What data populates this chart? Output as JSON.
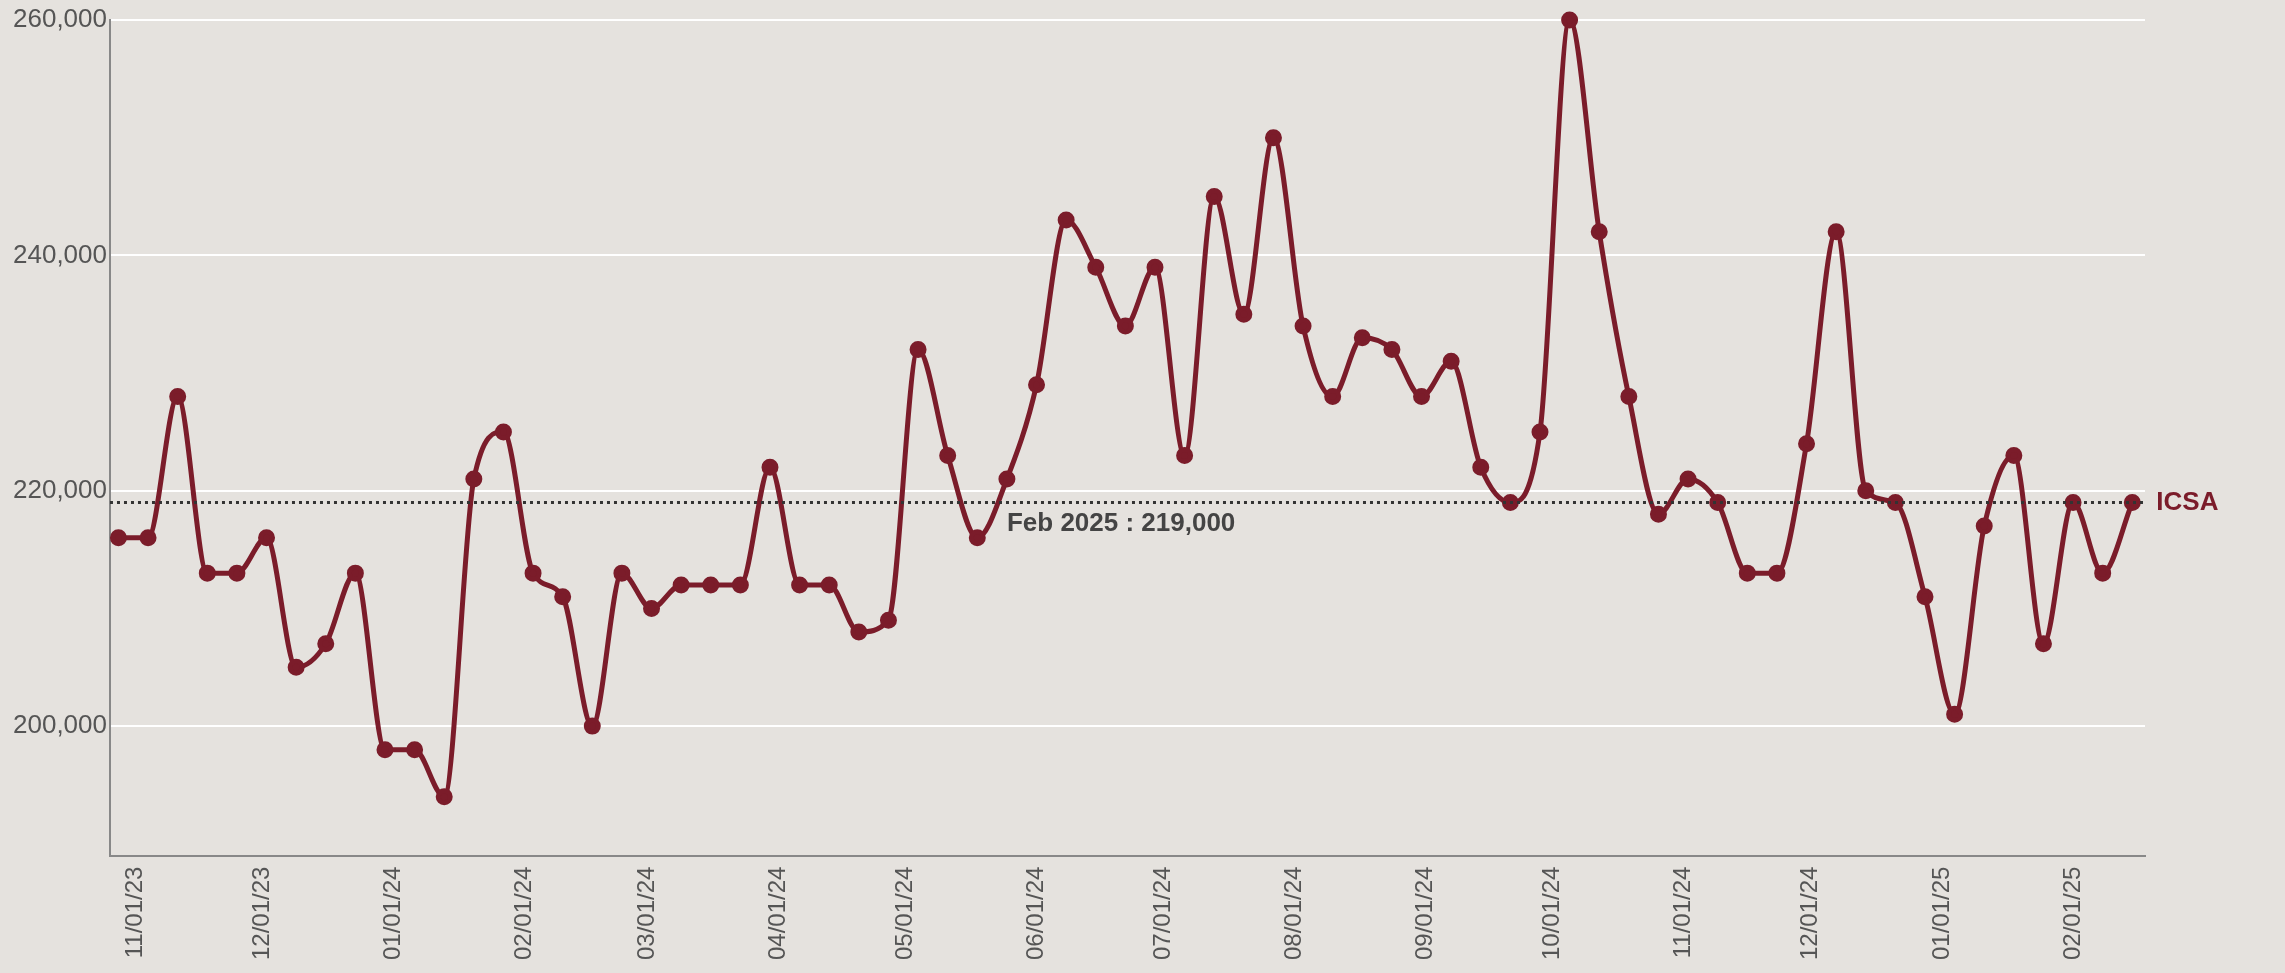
{
  "chart_data": {
    "type": "line",
    "x": [
      "2023-10-28",
      "2023-11-04",
      "2023-11-11",
      "2023-11-18",
      "2023-11-25",
      "2023-12-02",
      "2023-12-09",
      "2023-12-16",
      "2023-12-23",
      "2023-12-30",
      "2024-01-06",
      "2024-01-13",
      "2024-01-20",
      "2024-01-27",
      "2024-02-03",
      "2024-02-10",
      "2024-02-17",
      "2024-02-24",
      "2024-03-02",
      "2024-03-09",
      "2024-03-16",
      "2024-03-23",
      "2024-03-30",
      "2024-04-06",
      "2024-04-13",
      "2024-04-20",
      "2024-04-27",
      "2024-05-04",
      "2024-05-11",
      "2024-05-18",
      "2024-05-25",
      "2024-06-01",
      "2024-06-08",
      "2024-06-15",
      "2024-06-22",
      "2024-06-29",
      "2024-07-06",
      "2024-07-13",
      "2024-07-20",
      "2024-07-27",
      "2024-08-03",
      "2024-08-10",
      "2024-08-17",
      "2024-08-24",
      "2024-08-31",
      "2024-09-07",
      "2024-09-14",
      "2024-09-21",
      "2024-09-28",
      "2024-10-05",
      "2024-10-12",
      "2024-10-19",
      "2024-10-26",
      "2024-11-02",
      "2024-11-09",
      "2024-11-16",
      "2024-11-23",
      "2024-11-30",
      "2024-12-07",
      "2024-12-14",
      "2024-12-21",
      "2024-12-28",
      "2025-01-04",
      "2025-01-11",
      "2025-01-18",
      "2025-01-25",
      "2025-02-01",
      "2025-02-08",
      "2025-02-15"
    ],
    "series": [
      {
        "name": "ICSA",
        "color": "#7b1c2a",
        "values": [
          216000,
          216000,
          228000,
          213000,
          213000,
          216000,
          205000,
          207000,
          213000,
          198000,
          198000,
          194000,
          221000,
          225000,
          213000,
          211000,
          200000,
          213000,
          210000,
          212000,
          212000,
          212000,
          222000,
          212000,
          212000,
          208000,
          209000,
          232000,
          223000,
          216000,
          221000,
          229000,
          243000,
          239000,
          234000,
          239000,
          223000,
          245000,
          235000,
          250000,
          234000,
          228000,
          233000,
          232000,
          228000,
          231000,
          222000,
          219000,
          225000,
          260000,
          242000,
          228000,
          218000,
          221000,
          219000,
          213000,
          213000,
          224000,
          242000,
          220000,
          219000,
          211000,
          201000,
          217000,
          223000,
          207000,
          219000,
          213000,
          219000
        ]
      }
    ],
    "xlim": [
      "2023-10-26",
      "2025-02-18"
    ],
    "xticks": [
      {
        "value": "2023-11-01",
        "label": "11/01/23"
      },
      {
        "value": "2023-12-01",
        "label": "12/01/23"
      },
      {
        "value": "2024-01-01",
        "label": "01/01/24"
      },
      {
        "value": "2024-02-01",
        "label": "02/01/24"
      },
      {
        "value": "2024-03-01",
        "label": "03/01/24"
      },
      {
        "value": "2024-04-01",
        "label": "04/01/24"
      },
      {
        "value": "2024-05-01",
        "label": "05/01/24"
      },
      {
        "value": "2024-06-01",
        "label": "06/01/24"
      },
      {
        "value": "2024-07-01",
        "label": "07/01/24"
      },
      {
        "value": "2024-08-01",
        "label": "08/01/24"
      },
      {
        "value": "2024-09-01",
        "label": "09/01/24"
      },
      {
        "value": "2024-10-01",
        "label": "10/01/24"
      },
      {
        "value": "2024-11-01",
        "label": "11/01/24"
      },
      {
        "value": "2024-12-01",
        "label": "12/01/24"
      },
      {
        "value": "2025-01-01",
        "label": "01/01/25"
      },
      {
        "value": "2025-02-01",
        "label": "02/01/25"
      }
    ],
    "ylim": [
      189000,
      260000
    ],
    "yticks": [
      {
        "value": 200000,
        "label": "200,000"
      },
      {
        "value": 220000,
        "label": "220,000"
      },
      {
        "value": 240000,
        "label": "240,000"
      },
      {
        "value": 260000,
        "label": "260,000"
      }
    ],
    "ref_lines": [
      {
        "axis": "y",
        "value": 219000,
        "color": "#333333",
        "line_style": "dotted"
      }
    ],
    "annotations": [
      {
        "text": "Feb 2025 : 219,000",
        "x": "2024-06-21",
        "y": 219000
      }
    ],
    "grid": "y",
    "legend": false,
    "marker": "circle",
    "line_style": "solid"
  }
}
